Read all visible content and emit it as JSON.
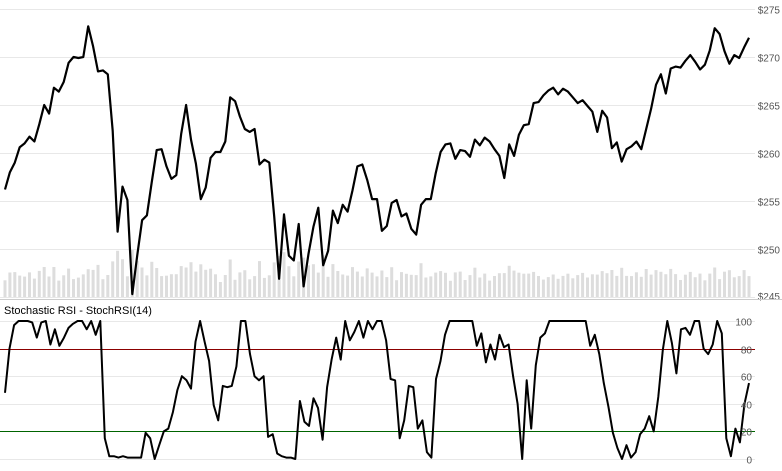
{
  "chart_data": [
    {
      "type": "line",
      "subtype": "price-with-volume",
      "ylim": [
        245,
        275
      ],
      "y_ticks": [
        245,
        250,
        255,
        260,
        265,
        270,
        275
      ],
      "y_tick_labels": [
        "$245",
        "$250",
        "$255",
        "$260",
        "$265",
        "$270",
        "$275"
      ],
      "y_axis_side": "right",
      "grid": true,
      "line_color": "#000000",
      "volume_color": "#dddddd",
      "close": [
        256.2,
        258.0,
        259.0,
        260.6,
        261.0,
        261.7,
        261.2,
        263.0,
        265.0,
        264.1,
        266.8,
        266.4,
        267.4,
        269.4,
        270.0,
        269.9,
        270.0,
        273.2,
        271.1,
        268.5,
        268.6,
        268.2,
        262.3,
        251.8,
        256.5,
        255.1,
        245.3,
        249.3,
        253.0,
        253.5,
        257.0,
        260.3,
        260.4,
        258.6,
        257.3,
        257.7,
        262.0,
        265.0,
        261.4,
        258.9,
        255.2,
        256.4,
        259.5,
        260.1,
        260.1,
        261.2,
        265.8,
        265.4,
        263.8,
        262.5,
        262.2,
        262.5,
        258.8,
        259.3,
        259.0,
        253.4,
        246.9,
        253.6,
        249.3,
        248.8,
        252.6,
        246.1,
        249.5,
        252.3,
        254.3,
        248.3,
        249.8,
        254.0,
        252.7,
        254.6,
        253.9,
        256.1,
        258.6,
        258.8,
        257.2,
        255.2,
        255.2,
        251.9,
        252.4,
        254.8,
        255.1,
        253.4,
        253.7,
        252.1,
        251.5,
        254.6,
        255.2,
        255.2,
        257.9,
        260.1,
        260.9,
        261.0,
        259.4,
        260.3,
        260.2,
        259.6,
        261.4,
        260.8,
        261.6,
        261.2,
        260.4,
        259.7,
        257.4,
        260.9,
        259.7,
        261.9,
        262.9,
        263.0,
        265.2,
        265.3,
        266.0,
        266.5,
        266.8,
        266.1,
        266.7,
        266.4,
        265.8,
        265.2,
        265.5,
        264.9,
        264.3,
        262.2,
        264.4,
        263.7,
        260.5,
        261.1,
        259.1,
        260.4,
        260.7,
        261.2,
        260.4,
        262.5,
        264.6,
        267.1,
        268.2,
        266.2,
        268.8,
        269.0,
        268.9,
        269.6,
        270.2,
        269.5,
        268.7,
        269.2,
        270.7,
        273.0,
        272.4,
        270.6,
        269.3,
        270.2,
        269.9,
        271.0,
        272.0
      ]
    },
    {
      "type": "line",
      "title": "Stochastic RSI - StochRSI(14)",
      "ylim": [
        0,
        100
      ],
      "y_ticks": [
        0,
        20,
        40,
        60,
        80,
        100
      ],
      "y_tick_labels": [
        "0",
        "20",
        "40",
        "60",
        "80",
        "100"
      ],
      "y_axis_side": "right",
      "reference_lines": [
        {
          "value": 80,
          "color": "#8b0000"
        },
        {
          "value": 20,
          "color": "#006400"
        }
      ],
      "line_color": "#000000",
      "values": [
        48,
        80,
        97,
        100,
        100,
        100,
        99,
        88,
        99,
        100,
        83,
        94,
        82,
        88,
        95,
        98,
        100,
        100,
        94,
        100,
        90,
        100,
        15,
        2,
        2,
        1,
        2,
        1,
        1,
        1,
        1,
        19,
        15,
        0,
        10,
        20,
        22,
        34,
        50,
        60,
        57,
        51,
        85,
        100,
        85,
        71,
        39,
        28,
        53,
        52,
        53,
        67,
        100,
        100,
        76,
        60,
        57,
        60,
        16,
        18,
        4,
        2,
        1,
        1,
        0,
        42,
        27,
        24,
        44,
        37,
        14,
        52,
        72,
        88,
        72,
        100,
        86,
        92,
        100,
        88,
        100,
        94,
        100,
        100,
        86,
        58,
        57,
        15,
        28,
        53,
        52,
        22,
        28,
        5,
        1,
        58,
        71,
        90,
        100,
        100,
        100,
        100,
        100,
        100,
        82,
        91,
        70,
        83,
        72,
        90,
        81,
        83,
        60,
        40,
        0,
        57,
        22,
        68,
        88,
        91,
        100,
        100,
        100,
        100,
        100,
        100,
        100,
        100,
        100,
        82,
        90,
        76,
        55,
        38,
        19,
        8,
        0,
        10,
        1,
        5,
        18,
        22,
        31,
        20,
        45,
        79,
        100,
        84,
        62,
        94,
        95,
        90,
        100,
        100,
        80,
        76,
        83,
        100,
        91,
        15,
        2,
        22,
        12,
        40,
        55
      ]
    }
  ]
}
